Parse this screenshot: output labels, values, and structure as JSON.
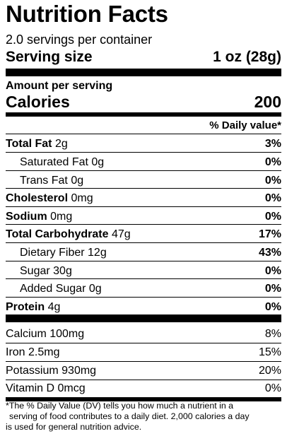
{
  "title": "Nutrition Facts",
  "servings_per_container": "2.0 servings per container",
  "serving_size": {
    "label": "Serving size",
    "value": "1 oz (28g)"
  },
  "amount_per_serving": "Amount per serving",
  "calories": {
    "label": "Calories",
    "value": "200"
  },
  "daily_value_header": "% Daily value*",
  "nutrients": [
    {
      "bold_name": "Total Fat",
      "amount": "2g",
      "pct": "3%"
    },
    {
      "name": "Saturated Fat 0g",
      "pct": "0%"
    },
    {
      "name": "Trans Fat 0g",
      "pct": "0%"
    },
    {
      "bold_name": "Cholesterol",
      "amount": "0mg",
      "pct": "0%"
    },
    {
      "bold_name": "Sodium",
      "amount": "0mg",
      "pct": "0%"
    },
    {
      "bold_name": "Total Carbohydrate",
      "amount": "47g",
      "pct": "17%"
    },
    {
      "name": "Dietary Fiber 12g",
      "pct": "43%"
    },
    {
      "name": "Sugar 30g",
      "pct": "0%"
    },
    {
      "name": "Added Sugar 0g",
      "pct": "0%"
    },
    {
      "bold_name": "Protein",
      "amount": "4g",
      "pct": "0%"
    }
  ],
  "vitamins": [
    {
      "name": "Calcium 100mg",
      "pct": "8%"
    },
    {
      "name": "Iron 2.5mg",
      "pct": "15%"
    },
    {
      "name": "Potassium 930mg",
      "pct": "20%"
    },
    {
      "name": "Vitamin D 0mcg",
      "pct": "0%"
    }
  ],
  "footnote": {
    "line1": "*The % Daily Value (DV) tells you how much a nutrient in a",
    "line2": "serving of food contributes to a daily diet. 2,000 calories a day",
    "line3": "is used for general nutrition advice."
  }
}
